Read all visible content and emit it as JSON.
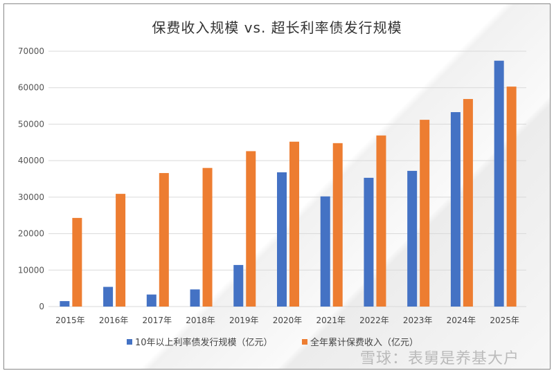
{
  "chart_data": {
    "type": "bar",
    "title": "保费收入规模 vs. 超长利率债发行规模",
    "categories": [
      "2015年",
      "2016年",
      "2017年",
      "2018年",
      "2019年",
      "2020年",
      "2021年",
      "2022年",
      "2023年",
      "2024年",
      "2025年"
    ],
    "series": [
      {
        "name": "10年以上利率债发行规模（亿元）",
        "color": "#4472C4",
        "values": [
          1500,
          5400,
          3300,
          4700,
          11400,
          36800,
          30200,
          35300,
          37200,
          53300,
          67400
        ]
      },
      {
        "name": "全年累计保费收入（亿元）",
        "color": "#ED7D31",
        "values": [
          24300,
          30900,
          36600,
          38000,
          42600,
          45200,
          44800,
          46900,
          51200,
          56900,
          60300
        ]
      }
    ],
    "yticks": [
      "0",
      "10000",
      "20000",
      "30000",
      "40000",
      "50000",
      "60000",
      "70000"
    ],
    "ylim": [
      0,
      70000
    ],
    "grid": true,
    "legend_position": "bottom",
    "xlabel": "",
    "ylabel": ""
  },
  "watermark": "雪球：表舅是养基大户"
}
